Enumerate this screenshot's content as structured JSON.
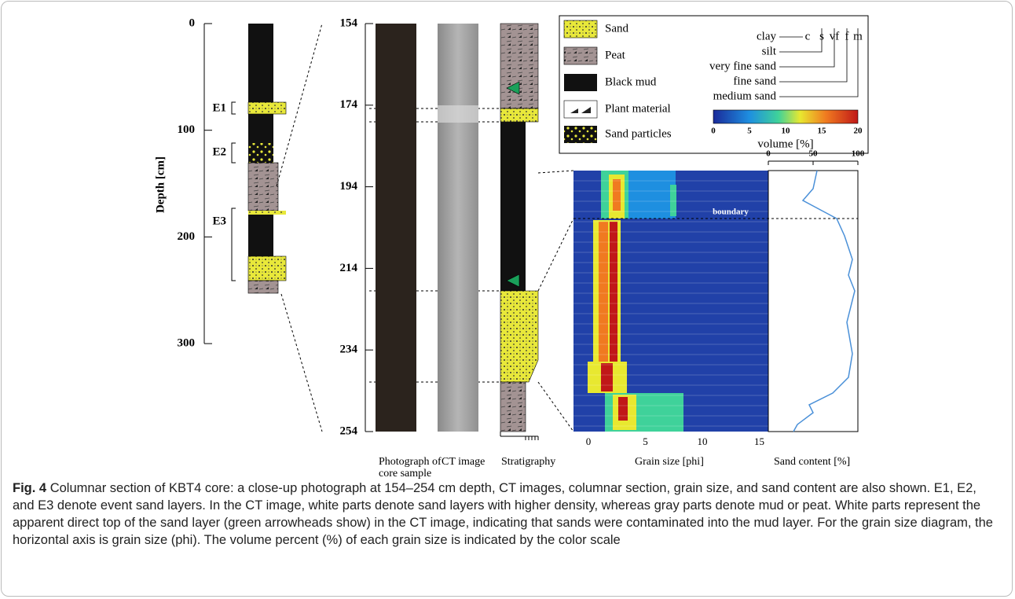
{
  "overview": {
    "axis_label": "Depth [cm]",
    "ticks": [
      "0",
      "100",
      "200",
      "300"
    ],
    "events": [
      "E1",
      "E2",
      "E3"
    ]
  },
  "closeup": {
    "ticks": [
      "154",
      "174",
      "194",
      "214",
      "234",
      "254"
    ],
    "columns": [
      "Photograph of core sample",
      "CT image",
      "Stratigraphy"
    ]
  },
  "legend": {
    "items": [
      "Sand",
      "Peat",
      "Black mud",
      "Plant material",
      "Sand particles"
    ],
    "grain_classes": [
      "clay",
      "silt",
      "very fine sand",
      "fine sand",
      "medium sand"
    ],
    "grain_abbrev": [
      "c",
      "s",
      "vf",
      "f",
      "m"
    ],
    "scale_ticks": [
      "0",
      "5",
      "10",
      "15",
      "20"
    ],
    "scale_label": "volume [%]"
  },
  "grain_panel": {
    "xticks": [
      "0",
      "5",
      "10",
      "15"
    ],
    "xlabel": "Grain size [phi]",
    "boundary": "boundary"
  },
  "sand_panel": {
    "xticks": [
      "0",
      "50",
      "100"
    ],
    "xlabel": "Sand content [%]"
  },
  "caption": {
    "label": "Fig. 4",
    "text": "Columnar section of KBT4 core: a close-up photograph at 154–254 cm depth, CT images, columnar section, grain size, and sand content are also shown. E1, E2, and E3 denote event sand layers. In the CT image, white parts denote sand layers with higher density, whereas gray parts denote mud or peat. White parts represent the apparent direct top of the sand layer (green arrowheads show) in the CT image, indicating that sands were contaminated into the mud layer. For the grain size diagram, the horizontal axis is grain size (phi). The volume percent (%) of each grain size is indicated by the color scale"
  }
}
